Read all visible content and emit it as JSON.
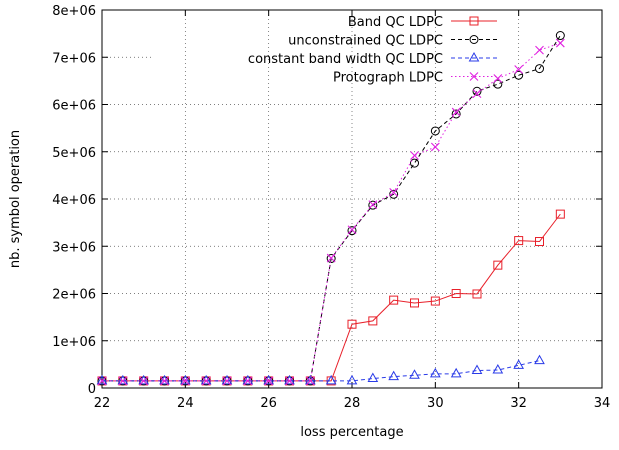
{
  "chart_data": {
    "type": "line",
    "title": "",
    "xlabel": "loss percentage",
    "ylabel": "nb. symbol operation",
    "xlim": [
      22,
      34
    ],
    "ylim": [
      0,
      8000000
    ],
    "x_ticks": [
      22,
      24,
      26,
      28,
      30,
      32,
      34
    ],
    "x_tick_labels": [
      "22",
      "24",
      "26",
      "28",
      "30",
      "32",
      "34"
    ],
    "y_ticks": [
      0,
      1000000,
      2000000,
      3000000,
      4000000,
      5000000,
      6000000,
      7000000,
      8000000
    ],
    "y_tick_labels": [
      "0",
      "1e+06",
      "2e+06",
      "3e+06",
      "4e+06",
      "5e+06",
      "6e+06",
      "7e+06",
      "8e+06"
    ],
    "grid": true,
    "legend_position": "top-right",
    "series": [
      {
        "name": "Band QC LDPC",
        "color": "#e8202a",
        "marker": "square",
        "dash": "solid",
        "x": [
          22,
          22.5,
          23,
          23.5,
          24,
          24.5,
          25,
          25.5,
          26,
          26.5,
          27,
          27.5,
          28,
          28.5,
          29,
          29.5,
          30,
          30.5,
          31,
          31.5,
          32,
          32.5,
          33
        ],
        "y": [
          150000,
          150000,
          150000,
          150000,
          150000,
          150000,
          150000,
          150000,
          150000,
          150000,
          150000,
          150000,
          1350000,
          1420000,
          1860000,
          1800000,
          1840000,
          2000000,
          1990000,
          2600000,
          3120000,
          3100000,
          3680000
        ]
      },
      {
        "name": "unconstrained QC LDPC",
        "color": "#000000",
        "marker": "circle",
        "dash": "dashed",
        "x": [
          22,
          22.5,
          23,
          23.5,
          24,
          24.5,
          25,
          25.5,
          26,
          26.5,
          27,
          27.5,
          28,
          28.5,
          29,
          29.5,
          30,
          30.5,
          31,
          31.5,
          32,
          32.5,
          33
        ],
        "y": [
          150000,
          150000,
          150000,
          150000,
          150000,
          150000,
          150000,
          150000,
          150000,
          150000,
          150000,
          2740000,
          3330000,
          3870000,
          4100000,
          4760000,
          5440000,
          5800000,
          6280000,
          6430000,
          6620000,
          6760000,
          7460000
        ]
      },
      {
        "name": "constant band width QC LDPC",
        "color": "#2a3be8",
        "marker": "triangle",
        "dash": "dashed",
        "x": [
          22,
          22.5,
          23,
          23.5,
          24,
          24.5,
          25,
          25.5,
          26,
          26.5,
          27,
          27.5,
          28,
          28.5,
          29,
          29.5,
          30,
          30.5,
          31,
          31.5,
          32,
          32.5
        ],
        "y": [
          150000,
          150000,
          150000,
          150000,
          150000,
          150000,
          150000,
          150000,
          150000,
          150000,
          150000,
          150000,
          150000,
          200000,
          240000,
          270000,
          300000,
          300000,
          370000,
          380000,
          480000,
          580000
        ]
      },
      {
        "name": "Protograph LDPC",
        "color": "#e020e0",
        "marker": "cross",
        "dash": "dotted",
        "x": [
          22,
          22.5,
          23,
          23.5,
          24,
          24.5,
          25,
          25.5,
          26,
          26.5,
          27,
          27.5,
          28,
          28.5,
          29,
          29.5,
          30,
          30.5,
          31,
          31.5,
          32,
          32.5,
          33
        ],
        "y": [
          150000,
          150000,
          150000,
          150000,
          150000,
          150000,
          150000,
          150000,
          150000,
          150000,
          150000,
          2750000,
          3350000,
          3880000,
          4140000,
          4920000,
          5100000,
          5840000,
          6230000,
          6550000,
          6740000,
          7150000,
          7300000
        ]
      }
    ]
  }
}
